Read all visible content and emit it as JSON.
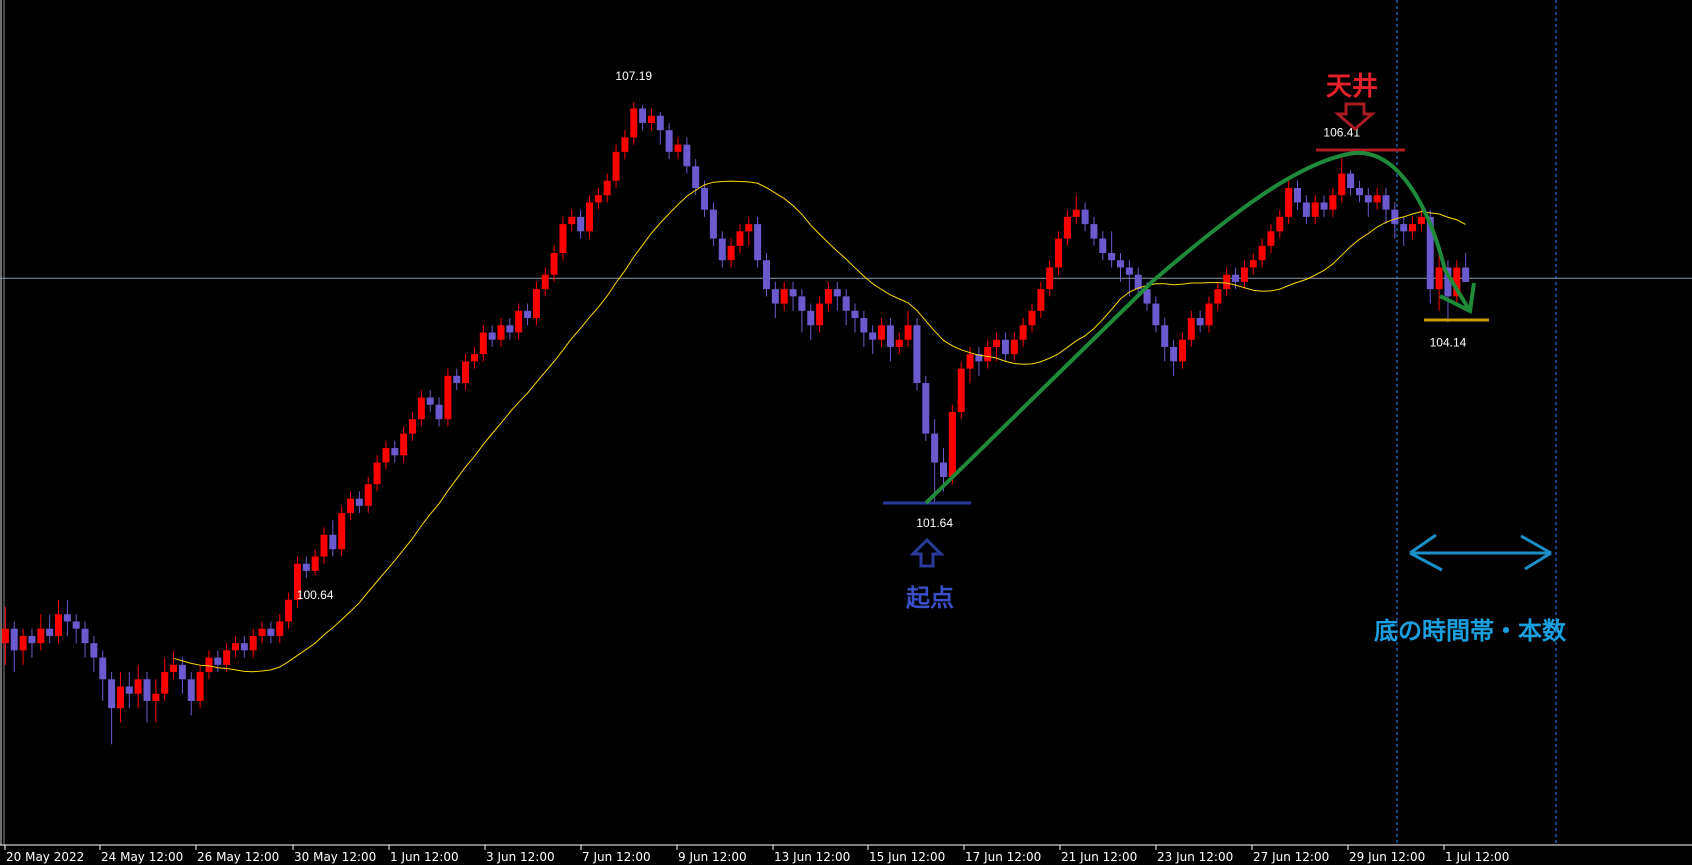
{
  "chart_data": {
    "type": "candlestick",
    "title": "",
    "timeframe": "H4",
    "colors": {
      "bull": "#ff0000",
      "bear": "#6a5acd",
      "ma": "#ffd700",
      "background": "#000000",
      "grid_line": "#8c9aa8",
      "time_marker": "#1e90ff"
    },
    "ma_period": 20,
    "horizontal_line_price": 104.75,
    "ylim": [
      97.9,
      108.6
    ],
    "x_tick_labels": [
      "20 May 2022",
      "24 May 12:00",
      "26 May 12:00",
      "30 May 12:00",
      "1 Jun 12:00",
      "3 Jun 12:00",
      "7 Jun 12:00",
      "9 Jun 12:00",
      "13 Jun 12:00",
      "15 Jun 12:00",
      "17 Jun 12:00",
      "21 Jun 12:00",
      "23 Jun 12:00",
      "27 Jun 12:00",
      "29 Jun 12:00",
      "1 Jul 12:00"
    ],
    "price_labels": [
      {
        "text": "107.19",
        "bar": 71,
        "pos": "above"
      },
      {
        "text": "100.64",
        "bar": 35,
        "pos": "below"
      },
      {
        "text": "101.64",
        "bar": 105,
        "pos": "below"
      },
      {
        "text": "106.41",
        "bar": 151,
        "pos": "above"
      },
      {
        "text": "104.14",
        "bar": 163,
        "pos": "below"
      }
    ],
    "candles_ohlc": [
      [
        99.7,
        100.2,
        99.4,
        99.9
      ],
      [
        99.9,
        100.0,
        99.3,
        99.6
      ],
      [
        99.6,
        99.9,
        99.4,
        99.8
      ],
      [
        99.8,
        99.9,
        99.5,
        99.7
      ],
      [
        99.7,
        100.1,
        99.6,
        99.9
      ],
      [
        99.9,
        100.1,
        99.7,
        99.8
      ],
      [
        99.8,
        100.3,
        99.7,
        100.1
      ],
      [
        100.1,
        100.3,
        99.8,
        100.0
      ],
      [
        100.0,
        100.1,
        99.7,
        99.9
      ],
      [
        99.9,
        100.0,
        99.5,
        99.7
      ],
      [
        99.7,
        99.8,
        99.3,
        99.5
      ],
      [
        99.5,
        99.6,
        98.9,
        99.2
      ],
      [
        99.2,
        99.3,
        98.3,
        98.8
      ],
      [
        98.8,
        99.3,
        98.6,
        99.1
      ],
      [
        99.1,
        99.3,
        98.8,
        99.0
      ],
      [
        99.0,
        99.4,
        98.8,
        99.2
      ],
      [
        99.2,
        99.3,
        98.6,
        98.9
      ],
      [
        98.9,
        99.2,
        98.6,
        99.0
      ],
      [
        99.0,
        99.5,
        98.9,
        99.3
      ],
      [
        99.3,
        99.6,
        99.2,
        99.4
      ],
      [
        99.4,
        99.5,
        99.0,
        99.2
      ],
      [
        99.2,
        99.3,
        98.7,
        98.9
      ],
      [
        98.9,
        99.4,
        98.8,
        99.3
      ],
      [
        99.3,
        99.6,
        99.2,
        99.5
      ],
      [
        99.5,
        99.6,
        99.3,
        99.4
      ],
      [
        99.4,
        99.7,
        99.3,
        99.6
      ],
      [
        99.6,
        99.8,
        99.5,
        99.7
      ],
      [
        99.7,
        99.8,
        99.5,
        99.6
      ],
      [
        99.6,
        99.9,
        99.5,
        99.8
      ],
      [
        99.8,
        100.0,
        99.7,
        99.9
      ],
      [
        99.9,
        100.0,
        99.7,
        99.8
      ],
      [
        99.8,
        100.1,
        99.7,
        100.0
      ],
      [
        100.0,
        100.4,
        99.9,
        100.3
      ],
      [
        100.3,
        100.9,
        100.2,
        100.8
      ],
      [
        100.8,
        100.9,
        100.6,
        100.7
      ],
      [
        100.7,
        101.0,
        100.64,
        100.9
      ],
      [
        100.9,
        101.3,
        100.8,
        101.2
      ],
      [
        101.2,
        101.4,
        100.9,
        101.0
      ],
      [
        101.0,
        101.6,
        100.9,
        101.5
      ],
      [
        101.5,
        101.8,
        101.4,
        101.7
      ],
      [
        101.7,
        101.8,
        101.5,
        101.6
      ],
      [
        101.6,
        102.0,
        101.5,
        101.9
      ],
      [
        101.9,
        102.3,
        101.8,
        102.2
      ],
      [
        102.2,
        102.5,
        102.1,
        102.4
      ],
      [
        102.4,
        102.5,
        102.2,
        102.3
      ],
      [
        102.3,
        102.7,
        102.2,
        102.6
      ],
      [
        102.6,
        102.9,
        102.5,
        102.8
      ],
      [
        102.8,
        103.2,
        102.7,
        103.1
      ],
      [
        103.1,
        103.2,
        102.9,
        103.0
      ],
      [
        103.0,
        103.1,
        102.7,
        102.8
      ],
      [
        102.8,
        103.5,
        102.7,
        103.4
      ],
      [
        103.4,
        103.5,
        103.2,
        103.3
      ],
      [
        103.3,
        103.7,
        103.2,
        103.6
      ],
      [
        103.6,
        103.8,
        103.5,
        103.7
      ],
      [
        103.7,
        104.1,
        103.6,
        104.0
      ],
      [
        104.0,
        104.1,
        103.8,
        103.9
      ],
      [
        103.9,
        104.2,
        103.8,
        104.1
      ],
      [
        104.1,
        104.2,
        103.9,
        104.0
      ],
      [
        104.0,
        104.4,
        103.9,
        104.3
      ],
      [
        104.3,
        104.4,
        104.1,
        104.2
      ],
      [
        104.2,
        104.7,
        104.1,
        104.6
      ],
      [
        104.6,
        104.9,
        104.5,
        104.8
      ],
      [
        104.8,
        105.2,
        104.7,
        105.1
      ],
      [
        105.1,
        105.6,
        105.0,
        105.5
      ],
      [
        105.5,
        105.7,
        105.4,
        105.6
      ],
      [
        105.6,
        105.7,
        105.3,
        105.4
      ],
      [
        105.4,
        105.9,
        105.3,
        105.8
      ],
      [
        105.8,
        106.0,
        105.7,
        105.9
      ],
      [
        105.9,
        106.2,
        105.8,
        106.1
      ],
      [
        106.1,
        106.6,
        106.0,
        106.5
      ],
      [
        106.5,
        106.8,
        106.4,
        106.7
      ],
      [
        106.7,
        107.19,
        106.6,
        107.1
      ],
      [
        107.1,
        107.15,
        106.8,
        106.9
      ],
      [
        106.9,
        107.1,
        106.8,
        107.0
      ],
      [
        107.0,
        107.05,
        106.6,
        106.8
      ],
      [
        106.8,
        106.9,
        106.4,
        106.5
      ],
      [
        106.5,
        106.7,
        106.4,
        106.6
      ],
      [
        106.6,
        106.7,
        106.2,
        106.3
      ],
      [
        106.3,
        106.4,
        105.9,
        106.0
      ],
      [
        106.0,
        106.1,
        105.6,
        105.7
      ],
      [
        105.7,
        105.8,
        105.2,
        105.3
      ],
      [
        105.3,
        105.4,
        104.9,
        105.0
      ],
      [
        105.0,
        105.3,
        104.9,
        105.2
      ],
      [
        105.2,
        105.5,
        105.1,
        105.4
      ],
      [
        105.4,
        105.6,
        105.2,
        105.5
      ],
      [
        105.5,
        105.6,
        104.9,
        105.0
      ],
      [
        105.0,
        105.1,
        104.5,
        104.6
      ],
      [
        104.6,
        104.7,
        104.2,
        104.4
      ],
      [
        104.4,
        104.7,
        104.3,
        104.6
      ],
      [
        104.6,
        104.7,
        104.3,
        104.5
      ],
      [
        104.5,
        104.6,
        104.0,
        104.3
      ],
      [
        104.3,
        104.4,
        103.9,
        104.1
      ],
      [
        104.1,
        104.5,
        104.0,
        104.4
      ],
      [
        104.4,
        104.7,
        104.3,
        104.6
      ],
      [
        104.6,
        104.7,
        104.3,
        104.5
      ],
      [
        104.5,
        104.6,
        104.1,
        104.3
      ],
      [
        104.3,
        104.4,
        104.0,
        104.2
      ],
      [
        104.2,
        104.3,
        103.8,
        104.0
      ],
      [
        104.0,
        104.1,
        103.7,
        103.9
      ],
      [
        103.9,
        104.2,
        103.8,
        104.1
      ],
      [
        104.1,
        104.2,
        103.6,
        103.8
      ],
      [
        103.8,
        104.0,
        103.7,
        103.9
      ],
      [
        103.9,
        104.3,
        103.8,
        104.1
      ],
      [
        104.1,
        104.2,
        103.2,
        103.3
      ],
      [
        103.3,
        103.4,
        102.5,
        102.6
      ],
      [
        102.6,
        102.8,
        101.64,
        102.2
      ],
      [
        102.2,
        102.4,
        101.8,
        102.0
      ],
      [
        102.0,
        103.0,
        101.9,
        102.9
      ],
      [
        102.9,
        103.6,
        102.8,
        103.5
      ],
      [
        103.5,
        103.8,
        103.3,
        103.7
      ],
      [
        103.7,
        103.8,
        103.4,
        103.6
      ],
      [
        103.6,
        103.9,
        103.5,
        103.8
      ],
      [
        103.8,
        104.0,
        103.6,
        103.9
      ],
      [
        103.9,
        104.0,
        103.6,
        103.7
      ],
      [
        103.7,
        104.0,
        103.6,
        103.9
      ],
      [
        103.9,
        104.2,
        103.8,
        104.1
      ],
      [
        104.1,
        104.4,
        104.0,
        104.3
      ],
      [
        104.3,
        104.7,
        104.2,
        104.6
      ],
      [
        104.6,
        105.0,
        104.5,
        104.9
      ],
      [
        104.9,
        105.4,
        104.8,
        105.3
      ],
      [
        105.3,
        105.7,
        105.2,
        105.6
      ],
      [
        105.6,
        105.9,
        105.5,
        105.7
      ],
      [
        105.7,
        105.8,
        105.4,
        105.5
      ],
      [
        105.5,
        105.6,
        105.2,
        105.3
      ],
      [
        105.3,
        105.4,
        105.0,
        105.1
      ],
      [
        105.1,
        105.4,
        104.9,
        105.0
      ],
      [
        105.0,
        105.1,
        104.7,
        104.9
      ],
      [
        104.9,
        105.0,
        104.5,
        104.8
      ],
      [
        104.8,
        104.9,
        104.5,
        104.6
      ],
      [
        104.6,
        104.7,
        104.3,
        104.4
      ],
      [
        104.4,
        104.5,
        104.0,
        104.1
      ],
      [
        104.1,
        104.2,
        103.6,
        103.8
      ],
      [
        103.8,
        103.9,
        103.4,
        103.6
      ],
      [
        103.6,
        104.0,
        103.5,
        103.9
      ],
      [
        103.9,
        104.3,
        103.8,
        104.2
      ],
      [
        104.2,
        104.3,
        104.0,
        104.1
      ],
      [
        104.1,
        104.5,
        104.0,
        104.4
      ],
      [
        104.4,
        104.7,
        104.3,
        104.6
      ],
      [
        104.6,
        104.9,
        104.5,
        104.8
      ],
      [
        104.8,
        104.9,
        104.6,
        104.7
      ],
      [
        104.7,
        105.0,
        104.6,
        104.9
      ],
      [
        104.9,
        105.1,
        104.8,
        105.0
      ],
      [
        105.0,
        105.3,
        104.9,
        105.2
      ],
      [
        105.2,
        105.5,
        105.1,
        105.4
      ],
      [
        105.4,
        105.7,
        105.3,
        105.6
      ],
      [
        105.6,
        106.1,
        105.5,
        106.0
      ],
      [
        106.0,
        106.1,
        105.7,
        105.8
      ],
      [
        105.8,
        105.9,
        105.5,
        105.6
      ],
      [
        105.6,
        105.9,
        105.5,
        105.8
      ],
      [
        105.8,
        105.9,
        105.6,
        105.7
      ],
      [
        105.7,
        106.0,
        105.6,
        105.9
      ],
      [
        105.9,
        106.41,
        105.8,
        106.2
      ],
      [
        106.2,
        106.25,
        105.9,
        106.0
      ],
      [
        106.0,
        106.1,
        105.8,
        105.9
      ],
      [
        105.9,
        106.0,
        105.6,
        105.8
      ],
      [
        105.8,
        106.0,
        105.7,
        105.9
      ],
      [
        105.9,
        106.0,
        105.5,
        105.7
      ],
      [
        105.7,
        105.8,
        105.3,
        105.5
      ],
      [
        105.5,
        105.6,
        105.2,
        105.4
      ],
      [
        105.4,
        105.6,
        105.3,
        105.5
      ],
      [
        105.5,
        105.7,
        105.4,
        105.6
      ],
      [
        105.6,
        105.7,
        104.4,
        104.6
      ],
      [
        104.6,
        105.1,
        104.3,
        104.9
      ],
      [
        104.9,
        105.0,
        104.14,
        104.5
      ],
      [
        104.5,
        105.0,
        104.4,
        104.9
      ],
      [
        104.9,
        105.1,
        104.7,
        104.7
      ]
    ]
  },
  "annotations": {
    "top_label": "天井",
    "start_label": "起点",
    "bottom_time_label": "底の時間帯・本数",
    "colors": {
      "top": "#e8202a",
      "start": "#3a4fc8",
      "trend": "#1f8a3a",
      "bottom_line": "#c8a000",
      "time_range": "#1aa0e0"
    }
  }
}
